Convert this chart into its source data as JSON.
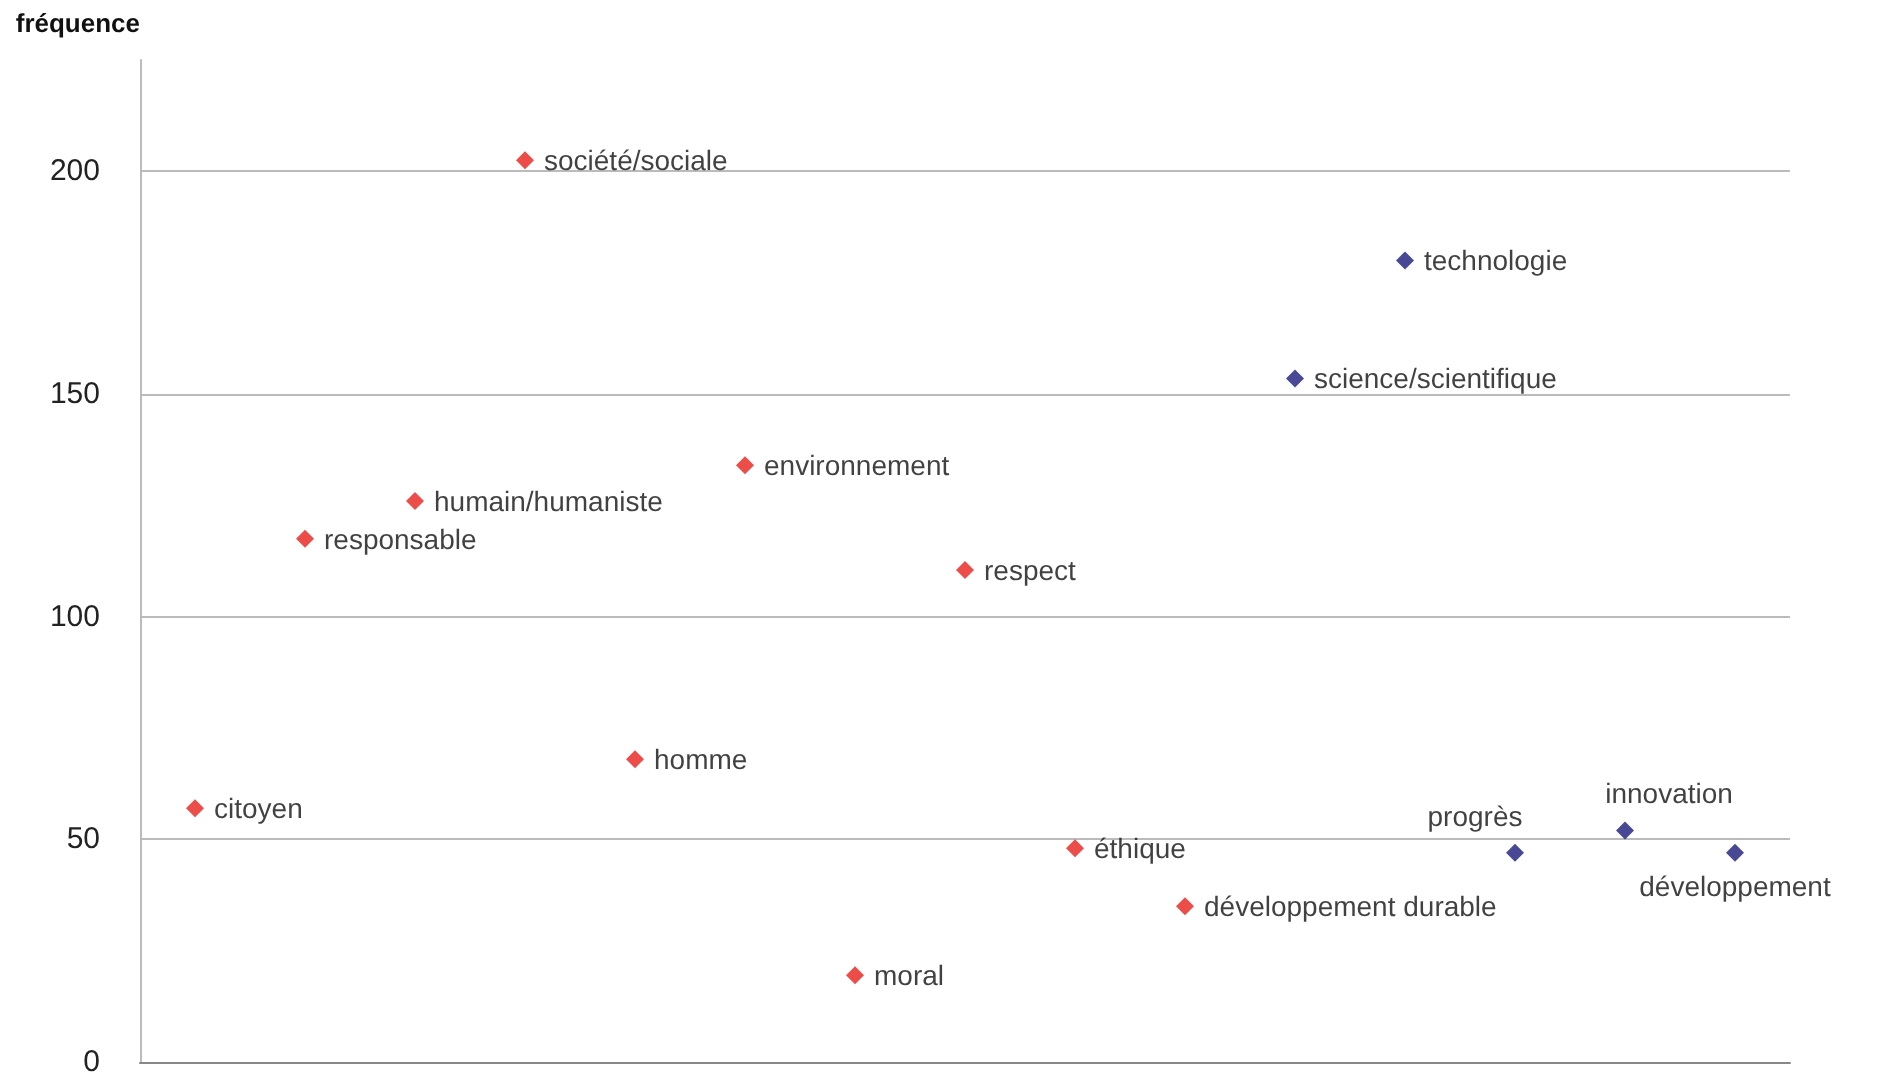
{
  "chart_data": {
    "type": "scatter",
    "ylabel": "fréquence",
    "categories": [
      null,
      null,
      null,
      null,
      null,
      null,
      null,
      null,
      null,
      null,
      null,
      null,
      null,
      null,
      null
    ],
    "series": [
      {
        "color": "#e8201c",
        "values": [
          57,
          117.5,
          126,
          202.5,
          68,
          134,
          19.5,
          110.5,
          48,
          35,
          null,
          null,
          null,
          null,
          null
        ],
        "value_labels": [
          "citoyen",
          "responsable",
          "humain/humaniste",
          "société/sociale",
          "homme",
          "environnement",
          "moral",
          "respect",
          "éthique",
          "développement durable",
          null,
          null,
          null,
          null,
          null
        ]
      },
      {
        "color": "#1a1a7a",
        "values": [
          null,
          null,
          null,
          null,
          null,
          null,
          null,
          null,
          null,
          null,
          153.5,
          180,
          47,
          52,
          47
        ],
        "value_labels": [
          null,
          null,
          null,
          null,
          null,
          null,
          null,
          null,
          null,
          null,
          "science/scientifique",
          "technologie",
          "progrès",
          "innovation",
          "développement"
        ]
      }
    ],
    "ylim": [
      0,
      225
    ],
    "yticks": [
      0,
      50,
      100,
      150,
      200
    ],
    "grid": "y",
    "marker": "diamond"
  }
}
